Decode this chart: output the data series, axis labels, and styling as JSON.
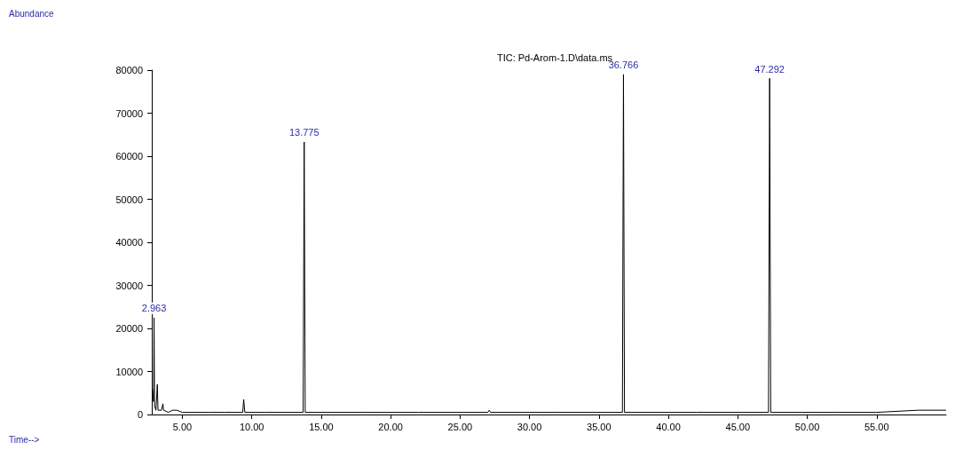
{
  "chart_data": {
    "type": "line",
    "title": "TIC: Pd-Arom-1.D\\data.ms",
    "series": [
      {
        "color": "#000000",
        "x": [
          2.85,
          2.93,
          2.963,
          3.0,
          3.1,
          3.2,
          3.25,
          3.5,
          3.6,
          3.65,
          4.0,
          4.3,
          4.6,
          5.0,
          6,
          7,
          8,
          9.35,
          9.42,
          9.5,
          11,
          13.7,
          13.775,
          13.85,
          18,
          22,
          27.0,
          27.1,
          27.2,
          32,
          36.69,
          36.766,
          36.84,
          42,
          47.21,
          47.292,
          47.37,
          52,
          55,
          58,
          60
        ],
        "values": [
          6000,
          3000,
          22500,
          2000,
          1000,
          7000,
          1000,
          1000,
          2500,
          1000,
          500,
          1000,
          1000,
          500,
          500,
          500,
          500,
          500,
          3500,
          500,
          500,
          500,
          63300,
          500,
          500,
          500,
          500,
          1000,
          500,
          500,
          500,
          79000,
          500,
          500,
          500,
          78100,
          500,
          500,
          500,
          1000,
          1000
        ]
      }
    ],
    "annotations": [
      "Abundance",
      "Time-->",
      {
        "text": "2.963",
        "x": 2.963,
        "y": 22500
      },
      {
        "text": "13.775",
        "x": 13.775,
        "y": 63300
      },
      {
        "text": "36.766",
        "x": 36.766,
        "y": 79000
      },
      {
        "text": "47.292",
        "x": 47.292,
        "y": 78100
      }
    ],
    "xlim": [
      2.8,
      60
    ],
    "xticks": [
      {
        "value": 5,
        "label": "5.00"
      },
      {
        "value": 10,
        "label": "10.00"
      },
      {
        "value": 15,
        "label": "15.00"
      },
      {
        "value": 20,
        "label": "20.00"
      },
      {
        "value": 25,
        "label": "25.00"
      },
      {
        "value": 30,
        "label": "30.00"
      },
      {
        "value": 35,
        "label": "35.00"
      },
      {
        "value": 40,
        "label": "40.00"
      },
      {
        "value": 45,
        "label": "45.00"
      },
      {
        "value": 50,
        "label": "50.00"
      },
      {
        "value": 55,
        "label": "55.00"
      }
    ],
    "ylim": [
      0,
      80000
    ],
    "yticks": [
      0,
      10000,
      20000,
      30000,
      40000,
      50000,
      60000,
      70000,
      80000
    ],
    "grid": false,
    "marker": "none",
    "line_style": "solid"
  }
}
